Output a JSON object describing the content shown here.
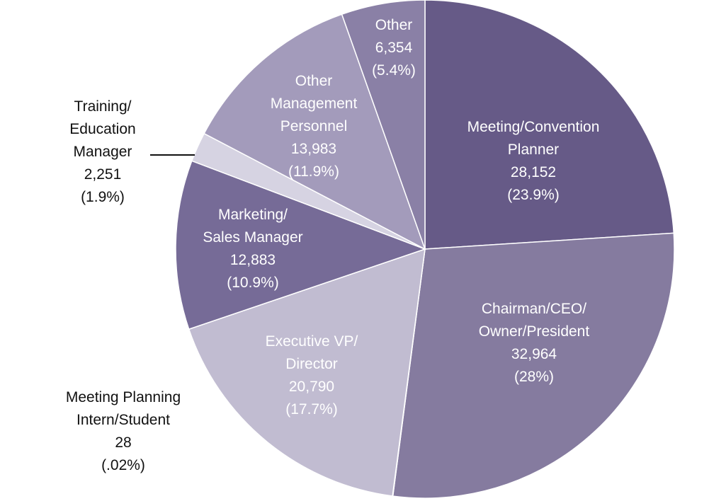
{
  "chart_data": {
    "type": "pie",
    "title": "",
    "slices": [
      {
        "label_lines": [
          "Meeting/Convention",
          "Planner"
        ],
        "value": 28152,
        "value_text": "28,152",
        "percent": 23.9,
        "percent_text": "(23.9%)",
        "color": "#665a87",
        "text_color": "#ffffff"
      },
      {
        "label_lines": [
          "Chairman/CEO/",
          "Owner/President"
        ],
        "value": 32964,
        "value_text": "32,964",
        "percent": 28,
        "percent_text": "(28%)",
        "color": "#857b9f",
        "text_color": "#ffffff"
      },
      {
        "label_lines": [
          "Meeting Planning",
          "Intern/Student"
        ],
        "value": 28,
        "value_text": "28",
        "percent": 0.02,
        "percent_text": "(.02%)",
        "color": "#c6c1d5",
        "text_color": "#111111"
      },
      {
        "label_lines": [
          "Executive VP/",
          "Director"
        ],
        "value": 20790,
        "value_text": "20,790",
        "percent": 17.7,
        "percent_text": "(17.7%)",
        "color": "#c1bcd1",
        "text_color": "#ffffff"
      },
      {
        "label_lines": [
          "Marketing/",
          "Sales Manager"
        ],
        "value": 12883,
        "value_text": "12,883",
        "percent": 10.9,
        "percent_text": "(10.9%)",
        "color": "#766b97",
        "text_color": "#ffffff"
      },
      {
        "label_lines": [
          "Training/",
          "Education",
          "Manager"
        ],
        "value": 2251,
        "value_text": "2,251",
        "percent": 1.9,
        "percent_text": "(1.9%)",
        "color": "#d6d3e2",
        "text_color": "#111111"
      },
      {
        "label_lines": [
          "Other",
          "Management",
          "Personnel"
        ],
        "value": 13983,
        "value_text": "13,983",
        "percent": 11.9,
        "percent_text": "(11.9%)",
        "color": "#a39bbb",
        "text_color": "#ffffff"
      },
      {
        "label_lines": [
          "Other"
        ],
        "value": 6354,
        "value_text": "6,354",
        "percent": 5.4,
        "percent_text": "(5.4%)",
        "color": "#8a80a6",
        "text_color": "#ffffff"
      }
    ]
  }
}
